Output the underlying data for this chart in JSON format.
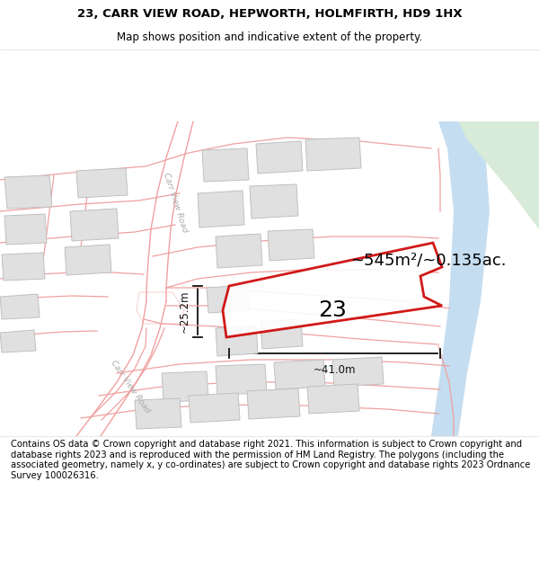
{
  "title_line1": "23, CARR VIEW ROAD, HEPWORTH, HOLMFIRTH, HD9 1HX",
  "title_line2": "Map shows position and indicative extent of the property.",
  "footer_text": "Contains OS data © Crown copyright and database right 2021. This information is subject to Crown copyright and database rights 2023 and is reproduced with the permission of HM Land Registry. The polygons (including the associated geometry, namely x, y co-ordinates) are subject to Crown copyright and database rights 2023 Ordnance Survey 100026316.",
  "area_label": "~545m²/~0.135ac.",
  "number_label": "23",
  "dim_width": "~41.0m",
  "dim_height": "~25.2m",
  "road_label_upper": "Carr View Road",
  "road_label_lower": "Carr View Road",
  "map_bg": "#f7f7f7",
  "plot_color": "#cc0000",
  "road_line_color": "#f0a0a0",
  "building_fill": "#e0e0e0",
  "building_edge": "#c0c0c0",
  "water_color": "#c5ddf0",
  "green_color": "#d8ead8",
  "dim_line_color": "#111111",
  "title_fontsize": 9.5,
  "subtitle_fontsize": 8.5,
  "footer_fontsize": 7.2,
  "area_fontsize": 13,
  "number_fontsize": 18,
  "dim_fontsize": 8.5,
  "road_label_fontsize": 6.5,
  "title_bold": true
}
